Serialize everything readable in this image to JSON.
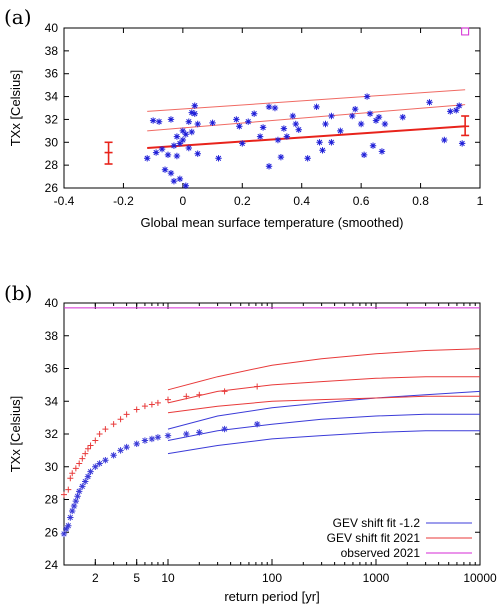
{
  "panel_labels": {
    "a": "(a)",
    "b": "(b)"
  },
  "chart_data": [
    {
      "panel": "(a)",
      "type": "scatter",
      "xlabel": "Global mean surface temperature (smoothed)",
      "ylabel": "TXx [Celsius]",
      "xlim": [
        -0.4,
        1.0
      ],
      "ylim": [
        26,
        40
      ],
      "xticks": [
        "-0.4",
        "-0.2",
        "0",
        "0.2",
        "0.4",
        "0.6",
        "0.8",
        "1"
      ],
      "yticks": [
        "26",
        "28",
        "30",
        "32",
        "34",
        "36",
        "38",
        "40"
      ],
      "grid": false,
      "colors": {
        "points": "#1f1fd8",
        "fit": "#e8231b",
        "fit_bounds": "#f06a63",
        "observed": "#d42ad4"
      },
      "points": [
        {
          "x": -0.12,
          "y": 28.6
        },
        {
          "x": -0.1,
          "y": 31.9
        },
        {
          "x": -0.09,
          "y": 29.1
        },
        {
          "x": -0.08,
          "y": 31.8
        },
        {
          "x": -0.07,
          "y": 29.4
        },
        {
          "x": -0.06,
          "y": 27.6
        },
        {
          "x": -0.05,
          "y": 28.9
        },
        {
          "x": -0.04,
          "y": 32.0
        },
        {
          "x": -0.04,
          "y": 27.3
        },
        {
          "x": -0.03,
          "y": 29.7
        },
        {
          "x": -0.03,
          "y": 26.6
        },
        {
          "x": -0.02,
          "y": 30.5
        },
        {
          "x": -0.02,
          "y": 28.8
        },
        {
          "x": -0.01,
          "y": 26.8
        },
        {
          "x": -0.01,
          "y": 29.9
        },
        {
          "x": 0.0,
          "y": 31.0
        },
        {
          "x": 0.0,
          "y": 30.2
        },
        {
          "x": 0.01,
          "y": 26.2
        },
        {
          "x": 0.01,
          "y": 30.7
        },
        {
          "x": 0.02,
          "y": 31.8
        },
        {
          "x": 0.02,
          "y": 29.5
        },
        {
          "x": 0.03,
          "y": 30.9
        },
        {
          "x": 0.03,
          "y": 32.6
        },
        {
          "x": 0.04,
          "y": 33.2
        },
        {
          "x": 0.04,
          "y": 32.5
        },
        {
          "x": 0.05,
          "y": 29.0
        },
        {
          "x": 0.05,
          "y": 31.6
        },
        {
          "x": 0.1,
          "y": 31.7
        },
        {
          "x": 0.12,
          "y": 28.6
        },
        {
          "x": 0.18,
          "y": 32.0
        },
        {
          "x": 0.19,
          "y": 31.4
        },
        {
          "x": 0.2,
          "y": 29.9
        },
        {
          "x": 0.22,
          "y": 31.8
        },
        {
          "x": 0.24,
          "y": 32.5
        },
        {
          "x": 0.26,
          "y": 30.5
        },
        {
          "x": 0.27,
          "y": 31.3
        },
        {
          "x": 0.29,
          "y": 27.9
        },
        {
          "x": 0.29,
          "y": 33.1
        },
        {
          "x": 0.31,
          "y": 33.0
        },
        {
          "x": 0.32,
          "y": 30.2
        },
        {
          "x": 0.33,
          "y": 28.7
        },
        {
          "x": 0.34,
          "y": 31.2
        },
        {
          "x": 0.35,
          "y": 30.5
        },
        {
          "x": 0.37,
          "y": 32.3
        },
        {
          "x": 0.38,
          "y": 31.6
        },
        {
          "x": 0.39,
          "y": 31.1
        },
        {
          "x": 0.42,
          "y": 28.6
        },
        {
          "x": 0.45,
          "y": 33.1
        },
        {
          "x": 0.46,
          "y": 30.0
        },
        {
          "x": 0.47,
          "y": 29.3
        },
        {
          "x": 0.48,
          "y": 31.6
        },
        {
          "x": 0.5,
          "y": 32.3
        },
        {
          "x": 0.5,
          "y": 30.0
        },
        {
          "x": 0.53,
          "y": 31.0
        },
        {
          "x": 0.57,
          "y": 32.3
        },
        {
          "x": 0.58,
          "y": 32.9
        },
        {
          "x": 0.6,
          "y": 31.6
        },
        {
          "x": 0.61,
          "y": 28.9
        },
        {
          "x": 0.62,
          "y": 34.0
        },
        {
          "x": 0.63,
          "y": 32.5
        },
        {
          "x": 0.64,
          "y": 29.7
        },
        {
          "x": 0.65,
          "y": 31.9
        },
        {
          "x": 0.66,
          "y": 32.2
        },
        {
          "x": 0.67,
          "y": 29.2
        },
        {
          "x": 0.68,
          "y": 31.6
        },
        {
          "x": 0.74,
          "y": 32.2
        },
        {
          "x": 0.83,
          "y": 33.5
        },
        {
          "x": 0.88,
          "y": 30.2
        },
        {
          "x": 0.9,
          "y": 32.7
        },
        {
          "x": 0.92,
          "y": 32.8
        },
        {
          "x": 0.93,
          "y": 33.2
        },
        {
          "x": 0.94,
          "y": 29.9
        }
      ],
      "fit": {
        "x": [
          -0.12,
          0.95
        ],
        "mean": [
          29.5,
          31.4
        ],
        "mid": [
          31.0,
          33.3
        ],
        "high": [
          32.7,
          34.6
        ]
      },
      "error_bars": [
        {
          "x": -0.25,
          "y": 29.1,
          "low": 28.1,
          "high": 30.0
        },
        {
          "x": 0.95,
          "y": 31.4,
          "low": 30.6,
          "high": 32.3
        }
      ],
      "observed_marker": {
        "x": 0.95,
        "y": 39.7
      }
    },
    {
      "panel": "(b)",
      "type": "line",
      "xlabel": "return period [yr]",
      "ylabel": "TXx [Celsius]",
      "xscale": "log",
      "xlim": [
        1,
        10000
      ],
      "ylim": [
        24,
        40
      ],
      "xticks": [
        "2",
        "5",
        "10",
        "100",
        "1000",
        "10000"
      ],
      "xtick_values": [
        2,
        5,
        10,
        100,
        1000,
        10000
      ],
      "yticks": [
        "24",
        "26",
        "28",
        "30",
        "32",
        "34",
        "36",
        "38",
        "40"
      ],
      "legend_position": "bottom-right",
      "series": [
        {
          "name": "GEV shift fit -1.2",
          "color": "#3b3bd8",
          "marker": "*",
          "curves": [
            {
              "x": [
                10,
                30,
                100,
                300,
                1000,
                3000,
                10000
              ],
              "y": [
                32.3,
                33.1,
                33.6,
                33.9,
                34.2,
                34.4,
                34.6
              ]
            },
            {
              "x": [
                10,
                30,
                100,
                300,
                1000,
                3000,
                10000
              ],
              "y": [
                31.6,
                32.2,
                32.6,
                32.9,
                33.1,
                33.2,
                33.2
              ]
            },
            {
              "x": [
                10,
                30,
                100,
                300,
                1000,
                3000,
                10000
              ],
              "y": [
                30.8,
                31.3,
                31.7,
                31.9,
                32.1,
                32.2,
                32.2
              ]
            }
          ],
          "points": [
            {
              "x": 1.0,
              "y": 25.9
            },
            {
              "x": 1.05,
              "y": 26.2
            },
            {
              "x": 1.1,
              "y": 26.4
            },
            {
              "x": 1.15,
              "y": 26.9
            },
            {
              "x": 1.2,
              "y": 27.3
            },
            {
              "x": 1.25,
              "y": 27.6
            },
            {
              "x": 1.3,
              "y": 27.9
            },
            {
              "x": 1.35,
              "y": 28.2
            },
            {
              "x": 1.4,
              "y": 28.5
            },
            {
              "x": 1.5,
              "y": 28.8
            },
            {
              "x": 1.6,
              "y": 29.1
            },
            {
              "x": 1.7,
              "y": 29.4
            },
            {
              "x": 1.8,
              "y": 29.7
            },
            {
              "x": 2.0,
              "y": 30.0
            },
            {
              "x": 2.2,
              "y": 30.2
            },
            {
              "x": 2.5,
              "y": 30.4
            },
            {
              "x": 3.0,
              "y": 30.7
            },
            {
              "x": 3.5,
              "y": 31.0
            },
            {
              "x": 4.0,
              "y": 31.2
            },
            {
              "x": 5.0,
              "y": 31.4
            },
            {
              "x": 6.0,
              "y": 31.6
            },
            {
              "x": 7.0,
              "y": 31.7
            },
            {
              "x": 8.0,
              "y": 31.8
            },
            {
              "x": 10,
              "y": 31.9
            },
            {
              "x": 15,
              "y": 32.0
            },
            {
              "x": 20,
              "y": 32.1
            },
            {
              "x": 35,
              "y": 32.3
            },
            {
              "x": 72,
              "y": 32.6
            }
          ]
        },
        {
          "name": "GEV shift fit 2021",
          "color": "#e83a3a",
          "marker": "+",
          "curves": [
            {
              "x": [
                10,
                30,
                100,
                300,
                1000,
                3000,
                10000
              ],
              "y": [
                34.7,
                35.5,
                36.2,
                36.6,
                36.9,
                37.1,
                37.2
              ]
            },
            {
              "x": [
                10,
                30,
                100,
                300,
                1000,
                3000,
                10000
              ],
              "y": [
                33.9,
                34.6,
                35.0,
                35.2,
                35.4,
                35.5,
                35.5
              ]
            },
            {
              "x": [
                10,
                30,
                100,
                300,
                1000,
                3000,
                10000
              ],
              "y": [
                33.3,
                33.7,
                34.0,
                34.1,
                34.2,
                34.3,
                34.3
              ]
            }
          ],
          "points": [
            {
              "x": 1.0,
              "y": 28.3
            },
            {
              "x": 1.1,
              "y": 28.6
            },
            {
              "x": 1.15,
              "y": 29.3
            },
            {
              "x": 1.2,
              "y": 29.6
            },
            {
              "x": 1.3,
              "y": 29.9
            },
            {
              "x": 1.4,
              "y": 30.2
            },
            {
              "x": 1.5,
              "y": 30.5
            },
            {
              "x": 1.6,
              "y": 30.8
            },
            {
              "x": 1.7,
              "y": 31.1
            },
            {
              "x": 1.8,
              "y": 31.3
            },
            {
              "x": 2.0,
              "y": 31.6
            },
            {
              "x": 2.2,
              "y": 32.0
            },
            {
              "x": 2.5,
              "y": 32.3
            },
            {
              "x": 3.0,
              "y": 32.6
            },
            {
              "x": 3.5,
              "y": 32.9
            },
            {
              "x": 4.0,
              "y": 33.2
            },
            {
              "x": 5.0,
              "y": 33.5
            },
            {
              "x": 6.0,
              "y": 33.7
            },
            {
              "x": 7.0,
              "y": 33.8
            },
            {
              "x": 8.0,
              "y": 33.9
            },
            {
              "x": 10,
              "y": 34.1
            },
            {
              "x": 15,
              "y": 34.3
            },
            {
              "x": 20,
              "y": 34.4
            },
            {
              "x": 35,
              "y": 34.6
            },
            {
              "x": 72,
              "y": 34.9
            }
          ]
        },
        {
          "name": "observed 2021",
          "color": "#d42ad4",
          "curves": [
            {
              "x": [
                1,
                10000
              ],
              "y": [
                39.7,
                39.7
              ]
            }
          ],
          "points": []
        }
      ]
    }
  ]
}
